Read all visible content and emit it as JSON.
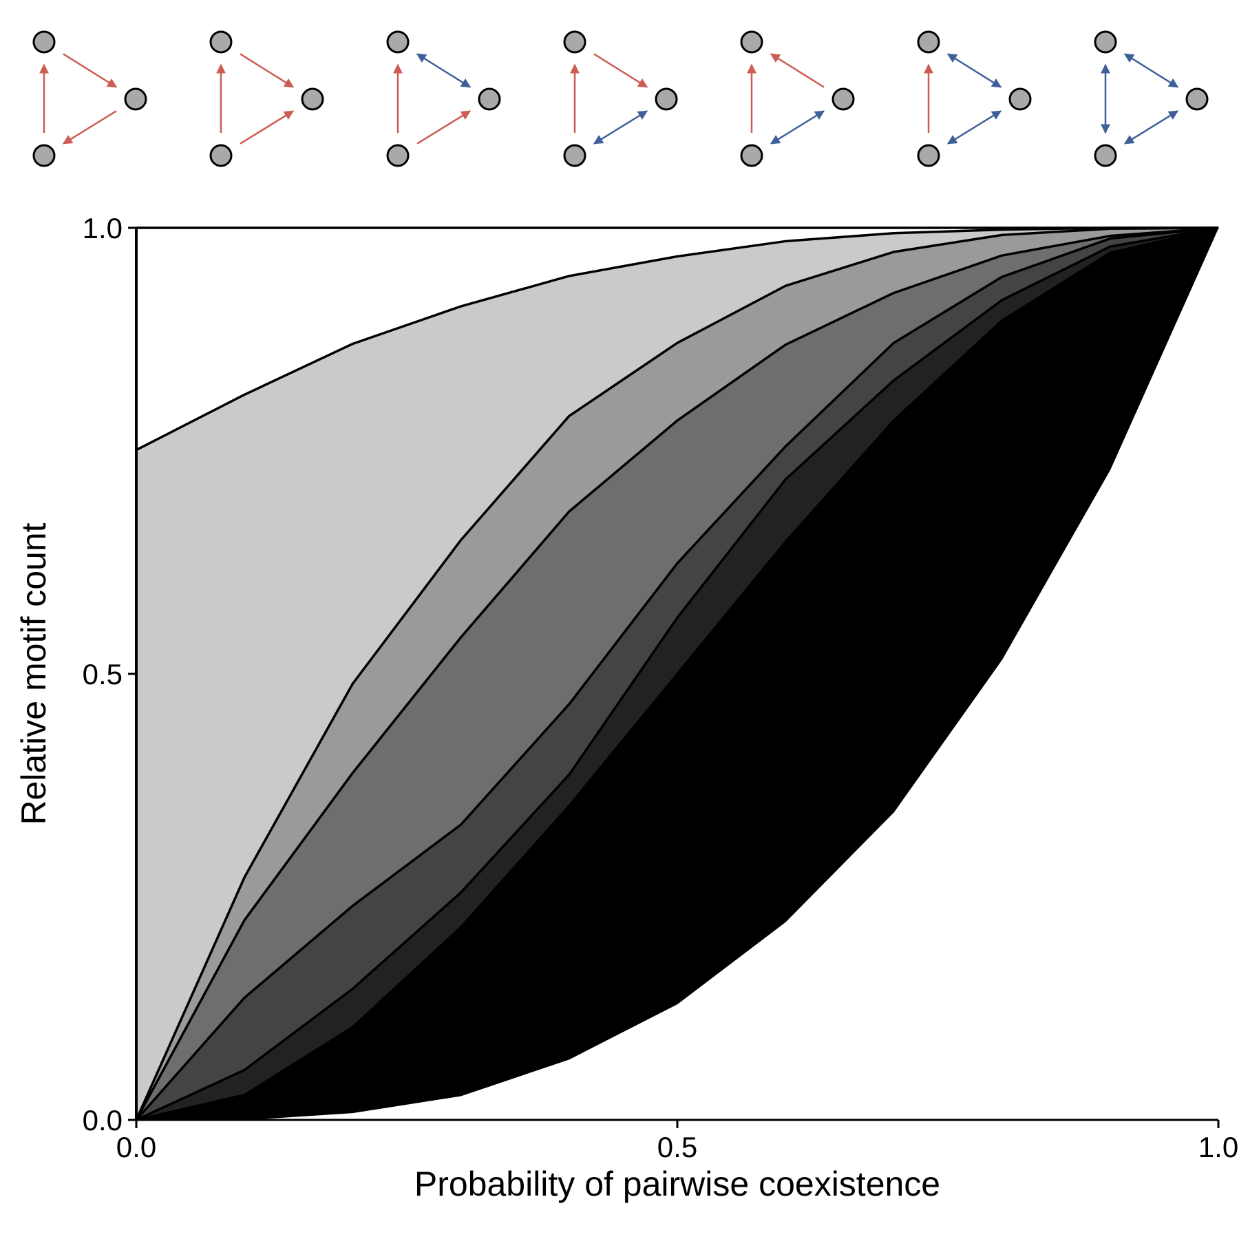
{
  "chart_data": {
    "type": "area",
    "stacked": true,
    "title": "",
    "xlabel": "Probability of pairwise coexistence",
    "ylabel": "Relative motif count",
    "xlim": [
      0,
      1
    ],
    "ylim": [
      0,
      1
    ],
    "xticks": [
      "0.0",
      "0.5",
      "1.0"
    ],
    "yticks": [
      "0.0",
      "0.5",
      "1.0"
    ],
    "grid": false,
    "x": [
      0,
      0.1,
      0.2,
      0.3,
      0.4,
      0.5,
      0.6,
      0.7,
      0.8,
      0.9,
      1.0
    ],
    "boundaries": [
      [
        0,
        0.0,
        0.008,
        0.027,
        0.068,
        0.13,
        0.222,
        0.345,
        0.516,
        0.729,
        1.0
      ],
      [
        0,
        0.028,
        0.104,
        0.216,
        0.352,
        0.5,
        0.648,
        0.784,
        0.896,
        0.972,
        1.0
      ],
      [
        0,
        0.056,
        0.147,
        0.255,
        0.387,
        0.563,
        0.718,
        0.829,
        0.919,
        0.979,
        1.0
      ],
      [
        0,
        0.137,
        0.24,
        0.331,
        0.466,
        0.624,
        0.755,
        0.871,
        0.945,
        0.988,
        1.0
      ],
      [
        0,
        0.224,
        0.389,
        0.541,
        0.682,
        0.784,
        0.869,
        0.927,
        0.969,
        0.991,
        1.0
      ],
      [
        0,
        0.272,
        0.489,
        0.65,
        0.789,
        0.871,
        0.935,
        0.973,
        0.992,
        0.999,
        1.0
      ],
      [
        0.751,
        0.813,
        0.87,
        0.912,
        0.946,
        0.968,
        0.985,
        0.994,
        0.998,
        1.0,
        1.0
      ],
      [
        1,
        1,
        1,
        1,
        1,
        1,
        1,
        1,
        1,
        1,
        1
      ]
    ],
    "fills": [
      "#000000",
      "#222222",
      "#444444",
      "#6e6e6e",
      "#9a9a9a",
      "#cacaca",
      "#ffffff"
    ],
    "boundary_lines": [
      false,
      true,
      true,
      true,
      true,
      true,
      true,
      true
    ]
  },
  "motifs": [
    {
      "icon": "motif-icon-1",
      "left": "red-up",
      "top": "red-forward",
      "bottom": "red-toward-bottom"
    },
    {
      "icon": "motif-icon-2",
      "left": "red-up",
      "top": "red-forward",
      "bottom": "red-toward-right"
    },
    {
      "icon": "motif-icon-3",
      "left": "red-up",
      "top": "blue-double",
      "bottom": "red-toward-right"
    },
    {
      "icon": "motif-icon-4",
      "left": "red-up",
      "top": "red-forward",
      "bottom": "blue-double"
    },
    {
      "icon": "motif-icon-5",
      "left": "red-up",
      "top": "red-toward-top",
      "bottom": "blue-double"
    },
    {
      "icon": "motif-icon-6",
      "left": "red-up",
      "top": "blue-double",
      "bottom": "blue-double"
    },
    {
      "icon": "motif-icon-7",
      "left": "blue-double",
      "top": "blue-double",
      "bottom": "blue-double"
    }
  ],
  "colors": {
    "red": "#cd5c53",
    "blue": "#3f5f98",
    "node": "#a9a9a9"
  }
}
